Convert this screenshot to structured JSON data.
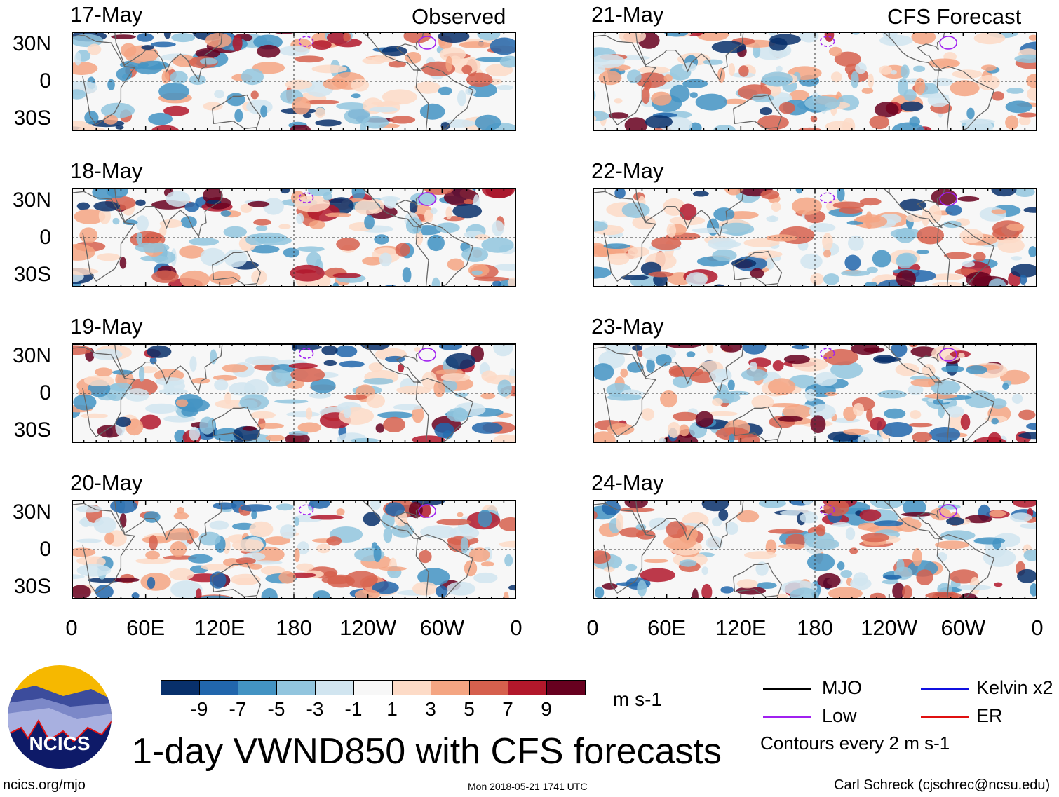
{
  "headers": {
    "observed": "Observed",
    "forecast": "CFS Forecast"
  },
  "panels": [
    {
      "date": "17-May",
      "group": "observed"
    },
    {
      "date": "18-May",
      "group": "observed"
    },
    {
      "date": "19-May",
      "group": "observed"
    },
    {
      "date": "20-May",
      "group": "observed"
    },
    {
      "date": "21-May",
      "group": "forecast"
    },
    {
      "date": "22-May",
      "group": "forecast"
    },
    {
      "date": "23-May",
      "group": "forecast"
    },
    {
      "date": "24-May",
      "group": "forecast"
    }
  ],
  "lat_labels": [
    "30N",
    "0",
    "30S"
  ],
  "lon_labels": [
    "0",
    "60E",
    "120E",
    "180",
    "120W",
    "60W",
    "0"
  ],
  "colorbar": {
    "colors": [
      "#08306b",
      "#2166ac",
      "#4393c3",
      "#92c5de",
      "#d1e5f0",
      "#f7f7f7",
      "#fddbc7",
      "#f4a582",
      "#d6604d",
      "#b2182b",
      "#67001f"
    ],
    "labels": [
      "-9",
      "-7",
      "-5",
      "-3",
      "-1",
      "1",
      "3",
      "5",
      "7",
      "9"
    ],
    "units": "m s-1"
  },
  "legend": {
    "items": [
      {
        "label": "MJO",
        "color": "#000000"
      },
      {
        "label": "Kelvin x2",
        "color": "#1010e0"
      },
      {
        "label": "Low",
        "color": "#a020f0"
      },
      {
        "label": "ER",
        "color": "#e01010"
      }
    ],
    "note": "Contours every 2 m s-1"
  },
  "logo": {
    "text": "NCICS"
  },
  "title": "1-day VWND850 with CFS forecasts",
  "footer": {
    "left": "ncics.org/mjo",
    "center": "Mon 2018-05-21 1741 UTC",
    "right": "Carl Schreck (cjschrec@ncsu.edu)"
  }
}
